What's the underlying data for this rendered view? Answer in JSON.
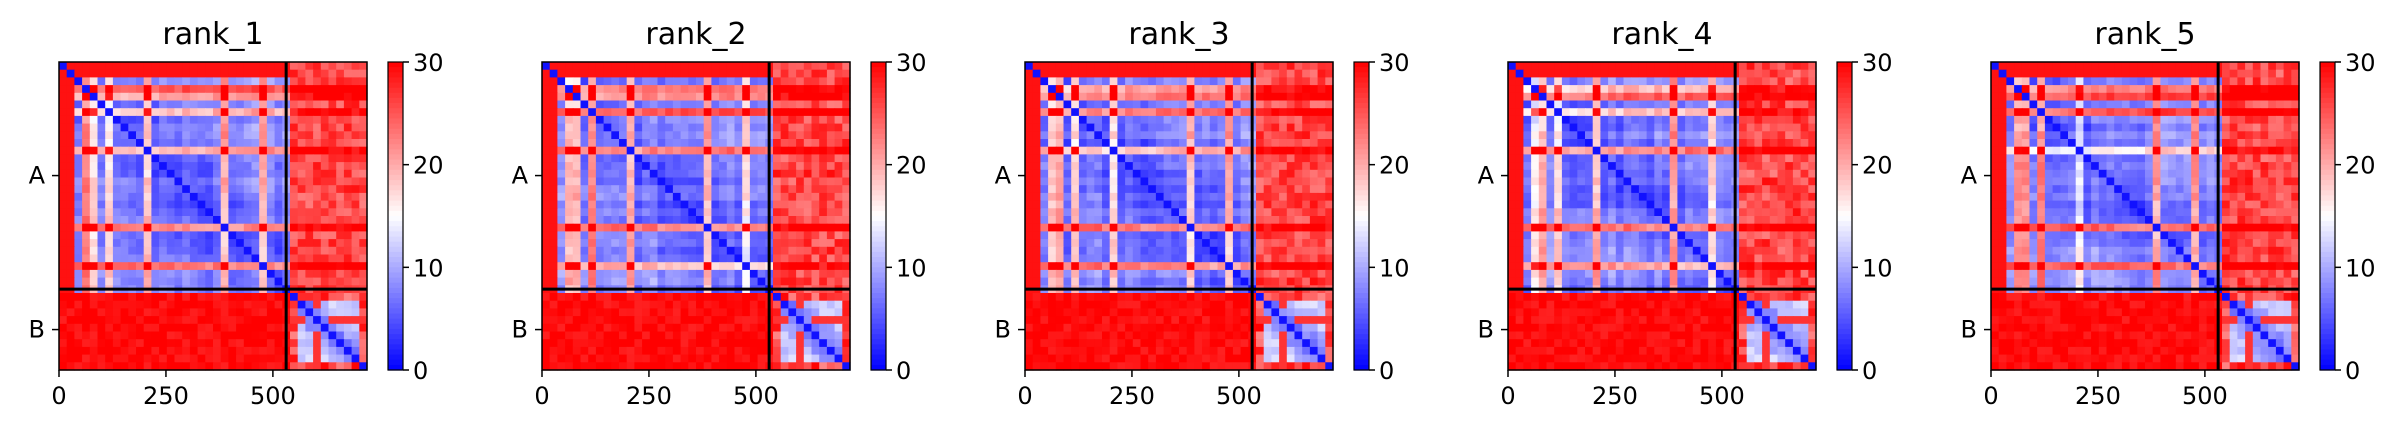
{
  "chart_data": [
    {
      "type": "heatmap",
      "title": "rank_1",
      "x_ticks": [
        0,
        250,
        500
      ],
      "x_range": [
        0,
        720
      ],
      "y_ticks": [
        "A",
        "B"
      ],
      "chain_boundary": 531,
      "colorbar": {
        "ticks": [
          0,
          10,
          20,
          30
        ],
        "range": [
          0,
          30
        ],
        "colormap": "bwr"
      }
    },
    {
      "type": "heatmap",
      "title": "rank_2",
      "x_ticks": [
        0,
        250,
        500
      ],
      "x_range": [
        0,
        720
      ],
      "y_ticks": [
        "A",
        "B"
      ],
      "chain_boundary": 531,
      "colorbar": {
        "ticks": [
          0,
          10,
          20,
          30
        ],
        "range": [
          0,
          30
        ],
        "colormap": "bwr"
      }
    },
    {
      "type": "heatmap",
      "title": "rank_3",
      "x_ticks": [
        0,
        250,
        500
      ],
      "x_range": [
        0,
        720
      ],
      "y_ticks": [
        "A",
        "B"
      ],
      "chain_boundary": 531,
      "colorbar": {
        "ticks": [
          0,
          10,
          20,
          30
        ],
        "range": [
          0,
          30
        ],
        "colormap": "bwr"
      }
    },
    {
      "type": "heatmap",
      "title": "rank_4",
      "x_ticks": [
        0,
        250,
        500
      ],
      "x_range": [
        0,
        720
      ],
      "y_ticks": [
        "A",
        "B"
      ],
      "chain_boundary": 531,
      "colorbar": {
        "ticks": [
          0,
          10,
          20,
          30
        ],
        "range": [
          0,
          30
        ],
        "colormap": "bwr"
      }
    },
    {
      "type": "heatmap",
      "title": "rank_5",
      "x_ticks": [
        0,
        250,
        500
      ],
      "x_range": [
        0,
        720
      ],
      "y_ticks": [
        "A",
        "B"
      ],
      "chain_boundary": 531,
      "colorbar": {
        "ticks": [
          0,
          10,
          20,
          30
        ],
        "range": [
          0,
          30
        ],
        "colormap": "bwr"
      }
    }
  ],
  "colors": {
    "low": "#0000ff",
    "mid": "#ffffff",
    "high": "#ff0000"
  }
}
